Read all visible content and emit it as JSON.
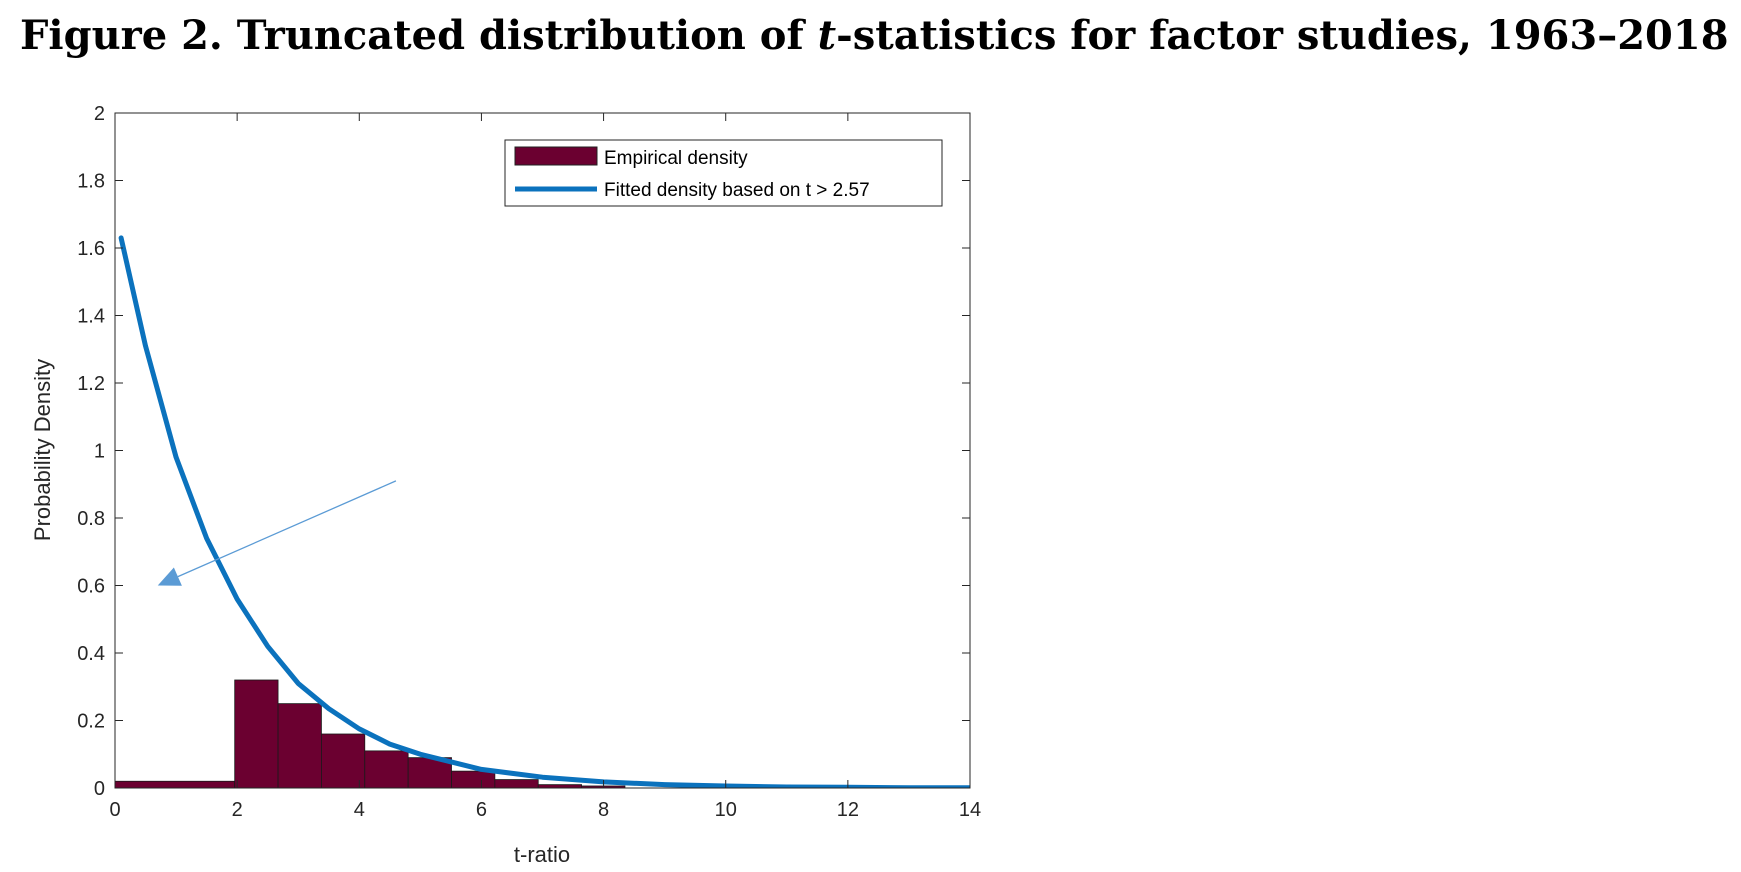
{
  "figure": {
    "title_prefix": "Figure 2.  Truncated distribution of ",
    "title_italic": "t",
    "title_suffix": "-statistics for factor studies, 1963–2018"
  },
  "colors": {
    "bar": "#6b0030",
    "curve": "#0b72bd",
    "arrow": "#5b9bd5",
    "axis": "#262626"
  },
  "chart_data": {
    "type": "bar",
    "xlabel": "t-ratio",
    "ylabel": "Probability Density",
    "xlim": [
      0,
      14
    ],
    "ylim": [
      0,
      2
    ],
    "xticks": [
      0,
      2,
      4,
      6,
      8,
      10,
      12,
      14
    ],
    "yticks": [
      0,
      0.2,
      0.4,
      0.6,
      0.8,
      1,
      1.2,
      1.4,
      1.6,
      1.8,
      2
    ],
    "ytick_labels": [
      "0",
      "0.2",
      "0.4",
      "0.6",
      "0.8",
      "1",
      "1.2",
      "1.4",
      "1.6",
      "1.8",
      "2"
    ],
    "grid": false,
    "legend_position": "top-right",
    "series": [
      {
        "name": "Empirical density",
        "type": "bar",
        "bins": [
          {
            "x0": 0,
            "x1": 1.96,
            "value": 0.02
          },
          {
            "x0": 1.96,
            "x1": 2.67,
            "value": 0.32
          },
          {
            "x0": 2.67,
            "x1": 3.38,
            "value": 0.25
          },
          {
            "x0": 3.38,
            "x1": 4.09,
            "value": 0.16
          },
          {
            "x0": 4.09,
            "x1": 4.8,
            "value": 0.11
          },
          {
            "x0": 4.8,
            "x1": 5.51,
            "value": 0.09
          },
          {
            "x0": 5.51,
            "x1": 6.22,
            "value": 0.05
          },
          {
            "x0": 6.22,
            "x1": 6.93,
            "value": 0.025
          },
          {
            "x0": 6.93,
            "x1": 7.64,
            "value": 0.01
          },
          {
            "x0": 7.64,
            "x1": 8.35,
            "value": 0.006
          }
        ]
      },
      {
        "name": "Fitted density based on t > 2.57",
        "type": "line",
        "x": [
          0.1,
          0.5,
          1,
          1.5,
          2,
          2.5,
          3,
          3.5,
          4,
          4.5,
          5,
          6,
          7,
          8,
          9,
          10,
          11,
          12,
          13,
          14
        ],
        "y": [
          1.63,
          1.31,
          0.98,
          0.74,
          0.56,
          0.42,
          0.31,
          0.235,
          0.175,
          0.13,
          0.1,
          0.055,
          0.032,
          0.018,
          0.01,
          0.006,
          0.003,
          0.002,
          0.001,
          0.001
        ]
      }
    ],
    "annotations": [
      {
        "type": "arrow",
        "from": [
          4.6,
          0.91
        ],
        "to": [
          0.7,
          0.6
        ]
      }
    ]
  }
}
